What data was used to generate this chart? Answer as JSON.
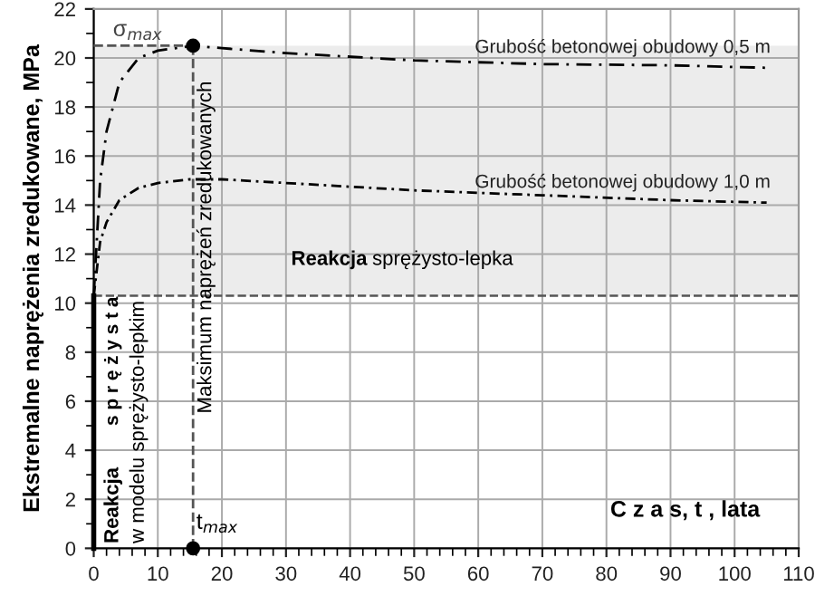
{
  "chart_data": {
    "type": "line",
    "xlabel": "C z a s, t , lata",
    "ylabel": "Ekstremalne naprężenia zredukowane, MPa",
    "xlim": [
      0,
      110
    ],
    "ylim": [
      0,
      22
    ],
    "xticks": [
      0,
      10,
      20,
      30,
      40,
      50,
      60,
      70,
      80,
      90,
      100,
      110
    ],
    "yticks": [
      0,
      2,
      4,
      6,
      8,
      10,
      12,
      14,
      16,
      18,
      20,
      22
    ],
    "grid": true,
    "series": [
      {
        "name": "Grubość betonowej obudowy 0,5 m",
        "color": "#000000",
        "line_style": "dashed",
        "x": [
          0,
          1,
          2,
          4,
          7,
          10,
          15.5,
          20,
          30,
          50,
          70,
          90,
          105
        ],
        "values": [
          10.3,
          15,
          17,
          19,
          20,
          20.3,
          20.5,
          20.4,
          20.2,
          19.9,
          19.75,
          19.7,
          19.6
        ]
      },
      {
        "name": "Grubość betonowej obudowy 1,0 m",
        "color": "#000000",
        "line_style": "dotted",
        "x": [
          0,
          1,
          2,
          4,
          7,
          10,
          15,
          20,
          30,
          50,
          70,
          90,
          105
        ],
        "values": [
          10.3,
          12.5,
          13.3,
          14.2,
          14.7,
          14.9,
          15.05,
          15.05,
          14.9,
          14.6,
          14.4,
          14.2,
          14.1
        ]
      },
      {
        "color": "#000000",
        "line_style": "solid",
        "x": [
          0,
          0
        ],
        "values": [
          0,
          10.3
        ]
      },
      {
        "color": "#555555",
        "line_style": "dashed",
        "x": [
          0,
          15.5
        ],
        "values": [
          20.5,
          20.5
        ]
      },
      {
        "color": "#555555",
        "line_style": "dashed",
        "x": [
          15.5,
          15.5
        ],
        "values": [
          0,
          20.5
        ]
      },
      {
        "type": "scatter",
        "color": "#000000",
        "marker": "circle",
        "x": [
          15.5,
          15.5
        ],
        "values": [
          20.5,
          0
        ]
      }
    ],
    "ref_lines": [
      {
        "axis": "y",
        "value": 10.3,
        "color": "#555555",
        "line_style": "dashed"
      }
    ],
    "bands": [
      {
        "axis": "y",
        "from": 10.3,
        "to": 20.5,
        "color": "#ececec"
      }
    ],
    "annotations": [
      {
        "text": "σ$_{max}$",
        "x": 0,
        "y": 20.5
      },
      {
        "text": "t$_{max}$",
        "x": 15.5,
        "y": 0
      },
      "Maksimum naprężeń zredukowanych",
      "Reakcja",
      "sprężysto-lepka",
      "Reakcja",
      "s p r ę ż y s t a",
      "w modelu sprężysto-lepkim"
    ]
  }
}
